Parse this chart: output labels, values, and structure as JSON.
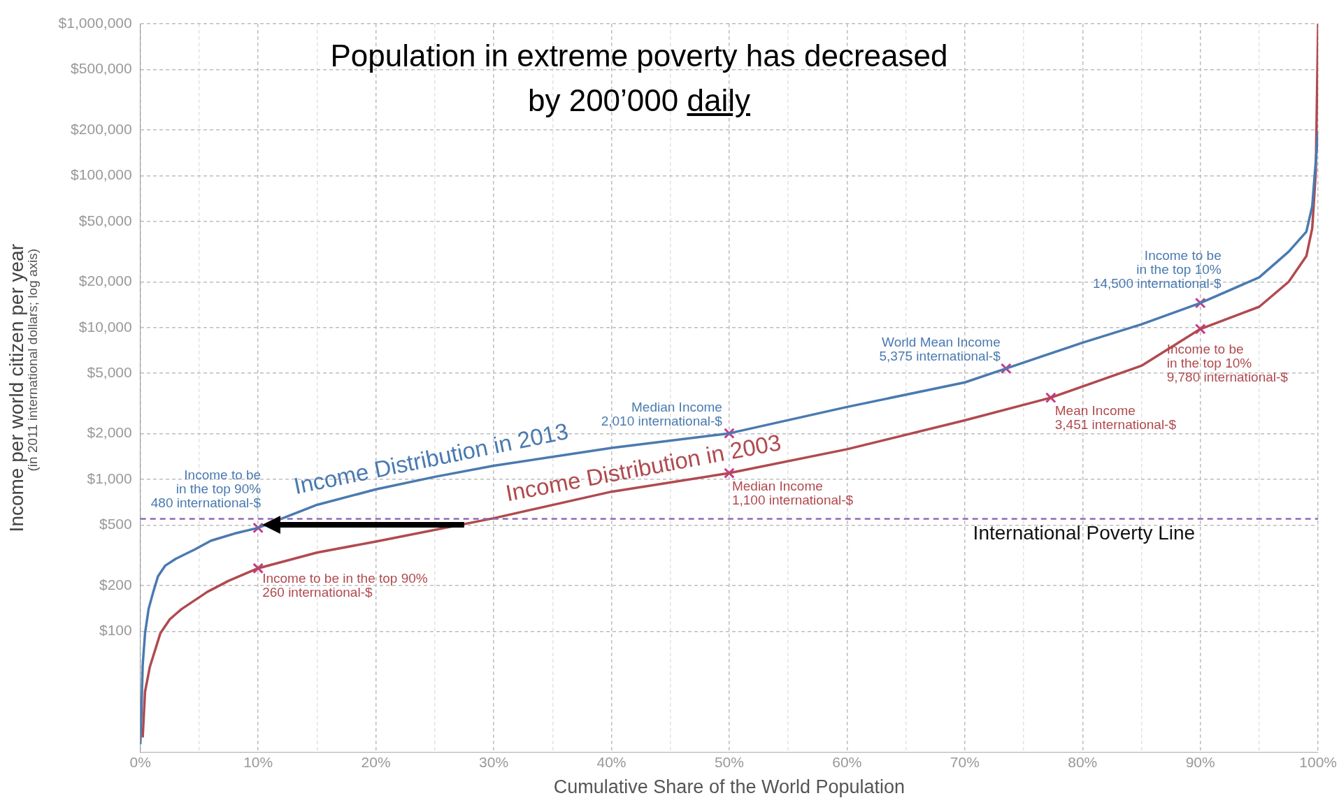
{
  "chart_data": {
    "type": "line",
    "title": "Population in extreme poverty has decreased by 200’000 daily",
    "xlabel": "Cumulative Share of the World Population",
    "ylabel": "Income per world citizen per year",
    "log": "y",
    "grid": true,
    "legend": false,
    "xlim": [
      0,
      100
    ],
    "ylim": [
      16,
      1000000
    ],
    "xticks": [
      {
        "value": 0,
        "label": "0%"
      },
      {
        "value": 5,
        "label": null
      },
      {
        "value": 10,
        "label": "10%"
      },
      {
        "value": 15,
        "label": null
      },
      {
        "value": 20,
        "label": "20%"
      },
      {
        "value": 25,
        "label": null
      },
      {
        "value": 30,
        "label": "30%"
      },
      {
        "value": 35,
        "label": null
      },
      {
        "value": 40,
        "label": "40%"
      },
      {
        "value": 45,
        "label": null
      },
      {
        "value": 50,
        "label": "50%"
      },
      {
        "value": 55,
        "label": null
      },
      {
        "value": 60,
        "label": "60%"
      },
      {
        "value": 65,
        "label": null
      },
      {
        "value": 70,
        "label": "70%"
      },
      {
        "value": 75,
        "label": null
      },
      {
        "value": 80,
        "label": "80%"
      },
      {
        "value": 85,
        "label": null
      },
      {
        "value": 90,
        "label": "90%"
      },
      {
        "value": 95,
        "label": null
      },
      {
        "value": 100,
        "label": "100%"
      }
    ],
    "yticks": [
      {
        "value": 100,
        "label": "$100"
      },
      {
        "value": 200,
        "label": "$200"
      },
      {
        "value": 500,
        "label": "$500"
      },
      {
        "value": 1000,
        "label": "$1,000"
      },
      {
        "value": 2000,
        "label": "$2,000"
      },
      {
        "value": 5000,
        "label": "$5,000"
      },
      {
        "value": 10000,
        "label": "$10,000"
      },
      {
        "value": 20000,
        "label": "$20,000"
      },
      {
        "value": 50000,
        "label": "$50,000"
      },
      {
        "value": 100000,
        "label": "$100,000"
      },
      {
        "value": 200000,
        "label": "$200,000"
      },
      {
        "value": 500000,
        "label": "$500,000"
      },
      {
        "value": 1000000,
        "label": "$1,000,000"
      }
    ],
    "series": [
      {
        "name": "Income Distribution in 2013",
        "type": "line",
        "color": "#4a7ab0",
        "line_style": "solid",
        "marker": "none",
        "x": [
          0,
          0.1,
          0.2,
          0.4,
          0.7,
          1.1,
          1.5,
          2.1,
          3,
          4.6,
          6,
          8,
          10,
          15,
          20,
          25,
          30,
          40,
          50,
          60,
          70,
          73.5,
          80,
          85,
          90,
          95,
          97.5,
          99,
          99.5,
          100
        ],
        "values": [
          18,
          31,
          60,
          97,
          140,
          182,
          230,
          270,
          300,
          345,
          395,
          440,
          480,
          680,
          860,
          1040,
          1230,
          1610,
          2010,
          3000,
          4350,
          5375,
          7950,
          10500,
          14500,
          21400,
          31600,
          42700,
          63000,
          195000
        ]
      },
      {
        "name": "Income Distribution in 2003",
        "type": "line",
        "color": "#b04a4f",
        "line_style": "solid",
        "marker": "none",
        "x": [
          0.2,
          0.4,
          0.8,
          1.7,
          2.5,
          3.5,
          5.7,
          7.5,
          10,
          15,
          20,
          30,
          40,
          50,
          60,
          70,
          77.3,
          85,
          90,
          95,
          97.5,
          99,
          99.5,
          99.8,
          100
        ],
        "values": [
          20,
          40,
          58,
          97,
          120,
          140,
          182,
          215,
          260,
          330,
          390,
          555,
          830,
          1100,
          1580,
          2450,
          3451,
          5600,
          9780,
          13700,
          20000,
          29500,
          45000,
          105000,
          1000000
        ]
      },
      {
        "type": "scatter",
        "color": "#c8388f",
        "marker": "cross",
        "x": [
          10,
          10,
          50,
          50,
          73.5,
          77.3,
          90,
          90
        ],
        "values": [
          480,
          260,
          2010,
          1100,
          5375,
          3451,
          14500,
          9780
        ]
      }
    ],
    "ref_lines": [
      {
        "axis": "y",
        "value": 550,
        "label": "International Poverty Line",
        "color": "#8e6bb5",
        "line_style": "dashed"
      }
    ],
    "annotations": [
      "(in 2011 international dollars; log axis)",
      {
        "text": "Income to be\nin the top 90%\n480 international-$",
        "x": 10,
        "y": 480
      },
      {
        "text": "Income to be in the top 90%\n260 international-$",
        "x": 10,
        "y": 260
      },
      {
        "text": "Median Income\n2,010 international-$",
        "x": 50,
        "y": 2010
      },
      {
        "text": "Median Income\n1,100 international-$",
        "x": 50,
        "y": 1100
      },
      {
        "text": "World Mean Income\n5,375 international-$",
        "x": 73.5,
        "y": 5375
      },
      {
        "text": "Mean Income\n3,451 international-$",
        "x": 77.3,
        "y": 3451
      },
      {
        "text": "Income to be\nin the top 10%\n14,500 international-$",
        "x": 90,
        "y": 14500
      },
      {
        "text": "Income to be\nin the top 10%\n9,780 international-$",
        "x": 90,
        "y": 9780
      }
    ]
  }
}
